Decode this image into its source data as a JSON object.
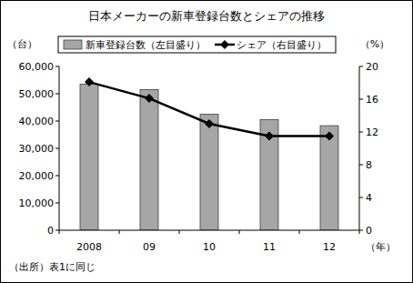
{
  "chart_data": {
    "type": "bar",
    "title": "日本メーカーの新車登録台数とシェアの推移",
    "categories": [
      "2008",
      "09",
      "10",
      "11",
      "12"
    ],
    "x_label": "（年）",
    "y_label": "（台）",
    "y2_label": "（%）",
    "source": "（出所）表1に同じ",
    "series": [
      {
        "name": "新車登録台数（左目盛り）",
        "type": "bar",
        "color": "#a6a6a6",
        "values": [
          53500,
          51500,
          42500,
          40500,
          38300
        ]
      },
      {
        "name": "シェア（右目盛り）",
        "type": "line",
        "axis": "y2",
        "color": "#000000",
        "marker": "diamond",
        "values": [
          18.1,
          16.1,
          13.0,
          11.5,
          11.5
        ]
      }
    ],
    "ylim": [
      0,
      60000
    ],
    "yticks": [
      0,
      {
        "value": 10000,
        "label": "10,000"
      },
      {
        "value": 20000,
        "label": "20,000"
      },
      {
        "value": 30000,
        "label": "30,000"
      },
      {
        "value": 40000,
        "label": "40,000"
      },
      {
        "value": 50000,
        "label": "50,000"
      },
      {
        "value": 60000,
        "label": "60,000"
      }
    ],
    "y2lim": [
      0,
      20
    ],
    "y2ticks": [
      0,
      4,
      8,
      12,
      16,
      20
    ],
    "grid": false,
    "legend": "top"
  }
}
